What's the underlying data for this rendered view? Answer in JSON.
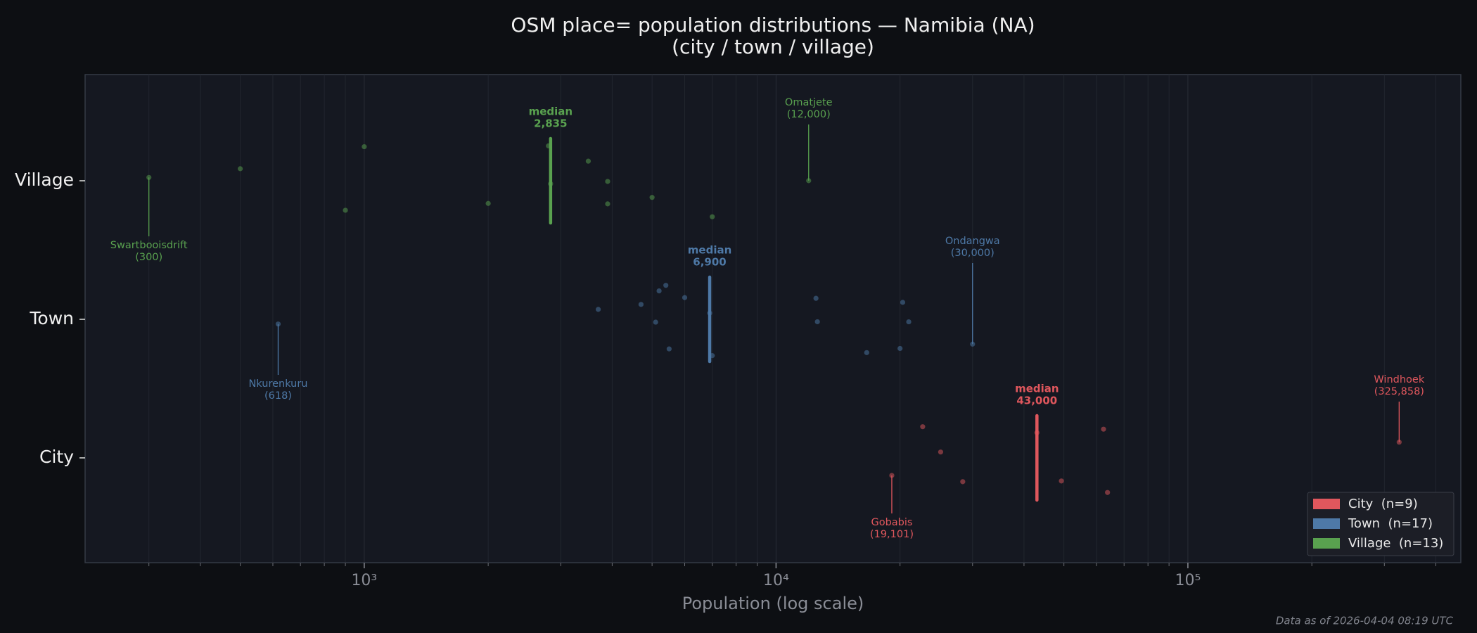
{
  "chart_data": {
    "type": "strip",
    "title": "OSM place= population distributions — Namibia (NA)",
    "subtitle": "(city / town / village)",
    "x_label": "Population (log scale)",
    "footer": "Data as of 2026-04-04 08:19 UTC",
    "x_log": true,
    "xlim": [
      210,
      460000
    ],
    "xticks": [
      {
        "value": 1000,
        "label": "10³"
      },
      {
        "value": 10000,
        "label": "10⁴"
      },
      {
        "value": 100000,
        "label": "10⁵"
      }
    ],
    "xminorticks": [
      300,
      400,
      500,
      600,
      700,
      800,
      900,
      2000,
      3000,
      4000,
      5000,
      6000,
      7000,
      8000,
      9000,
      20000,
      30000,
      40000,
      50000,
      60000,
      70000,
      80000,
      90000,
      200000,
      300000,
      400000
    ],
    "grid": true,
    "legend_position": "lower right",
    "median_label": "median",
    "series": [
      {
        "name": "City",
        "legend_label": "City  (n=9)",
        "color": "#e0575d",
        "values": [
          19101,
          22700,
          25100,
          28400,
          43000,
          49300,
          62400,
          63800,
          325858
        ],
        "median": {
          "value": 43000,
          "label": "43,000"
        },
        "min_note": {
          "name": "Gobabis",
          "value": 19101,
          "label": "(19,101)"
        },
        "max_note": {
          "name": "Windhoek",
          "value": 325858,
          "label": "(325,858)"
        }
      },
      {
        "name": "Town",
        "legend_label": "Town  (n=17)",
        "color": "#4e79a7",
        "values": [
          618,
          3700,
          4700,
          5100,
          5200,
          5400,
          5500,
          6000,
          6900,
          7000,
          12500,
          12600,
          16600,
          20000,
          20300,
          21000,
          30000
        ],
        "median": {
          "value": 6900,
          "label": "6,900"
        },
        "min_note": {
          "name": "Nkurenkuru",
          "value": 618,
          "label": "(618)"
        },
        "max_note": {
          "name": "Ondangwa",
          "value": 30000,
          "label": "(30,000)"
        }
      },
      {
        "name": "Village",
        "legend_label": "Village  (n=13)",
        "color": "#59a14f",
        "values": [
          300,
          500,
          900,
          1000,
          2000,
          2800,
          2835,
          3500,
          3900,
          3900,
          5000,
          7000,
          12000
        ],
        "median": {
          "value": 2835,
          "label": "2,835"
        },
        "min_note": {
          "name": "Swartbooisdrift",
          "value": 300,
          "label": "(300)"
        },
        "max_note": {
          "name": "Omatjete",
          "value": 12000,
          "label": "(12,000)"
        }
      }
    ]
  }
}
